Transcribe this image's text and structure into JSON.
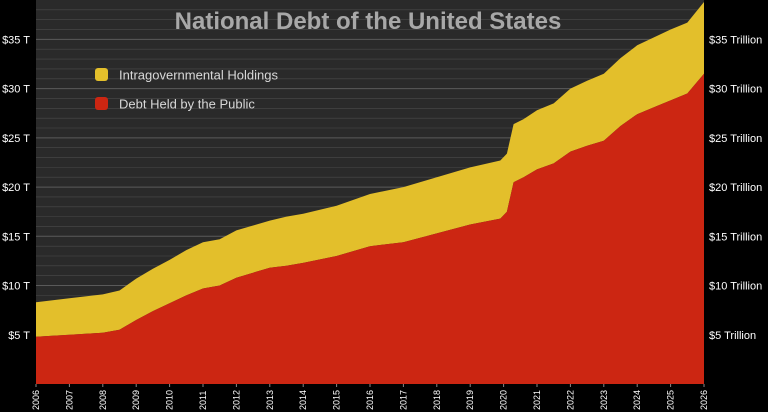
{
  "chart_data": {
    "type": "area",
    "title": "National Debt of the United States",
    "xlabel": "",
    "ylabel": "",
    "xlim": [
      2006,
      2026
    ],
    "ylim": [
      0,
      39
    ],
    "y_unit": "trillion USD",
    "stacked": true,
    "grid": true,
    "legend_position": "top-left",
    "colors": {
      "background": "#2a2a2a",
      "intragovernmental": "#e3bf2b",
      "public": "#cc2612",
      "gridline": "#4a4a4a"
    },
    "x_ticks": [
      "2006",
      "2007",
      "2008",
      "2009",
      "2010",
      "2011",
      "2012",
      "2013",
      "2014",
      "2015",
      "2016",
      "2017",
      "2018",
      "2019",
      "2020",
      "2021",
      "2022",
      "2023",
      "2024",
      "2025",
      "2026"
    ],
    "x_tick_values": [
      2006,
      2007,
      2008,
      2009,
      2010,
      2011,
      2012,
      2013,
      2014,
      2015,
      2016,
      2017,
      2018,
      2019,
      2020,
      2021,
      2022,
      2023,
      2024,
      2025,
      2026
    ],
    "y_ticks_left": [
      "$5 T",
      "$10 T",
      "$15 T",
      "$20 T",
      "$25 T",
      "$30 T",
      "$35 T"
    ],
    "y_ticks_right": [
      "$5 Trillion",
      "$10 Trillion",
      "$15 Trillion",
      "$20 Trillion",
      "$25 Trillion",
      "$30 Trillion",
      "$35 Trillion"
    ],
    "y_tick_values": [
      5,
      10,
      15,
      20,
      25,
      30,
      35
    ],
    "x": [
      2006.0,
      2007.0,
      2008.0,
      2008.5,
      2009.0,
      2009.5,
      2010.0,
      2010.5,
      2011.0,
      2011.5,
      2012.0,
      2012.5,
      2013.0,
      2013.5,
      2014.0,
      2015.0,
      2016.0,
      2017.0,
      2018.0,
      2019.0,
      2019.9,
      2020.1,
      2020.3,
      2020.6,
      2021.0,
      2021.5,
      2022.0,
      2022.5,
      2023.0,
      2023.5,
      2024.0,
      2024.5,
      2025.0,
      2025.5,
      2026.0
    ],
    "series": [
      {
        "name": "Debt Held by the Public",
        "color": "#cc2612",
        "values": [
          4.8,
          5.0,
          5.2,
          5.5,
          6.5,
          7.4,
          8.2,
          9.0,
          9.7,
          10.0,
          10.8,
          11.3,
          11.8,
          12.0,
          12.3,
          13.0,
          14.0,
          14.4,
          15.3,
          16.2,
          16.8,
          17.5,
          20.5,
          21.0,
          21.8,
          22.4,
          23.6,
          24.2,
          24.7,
          26.2,
          27.4,
          28.1,
          28.8,
          29.5,
          31.5
        ]
      },
      {
        "name": "Intragovernmental Holdings",
        "color": "#e3bf2b",
        "values": [
          3.5,
          3.7,
          3.9,
          4.0,
          4.2,
          4.3,
          4.4,
          4.6,
          4.7,
          4.7,
          4.8,
          4.8,
          4.8,
          5.0,
          5.0,
          5.1,
          5.3,
          5.6,
          5.7,
          5.8,
          5.9,
          5.9,
          5.9,
          5.9,
          6.0,
          6.1,
          6.4,
          6.6,
          6.8,
          6.9,
          7.0,
          7.1,
          7.2,
          7.2,
          7.3
        ]
      }
    ],
    "legend": [
      {
        "label": "Intragovernmental Holdings",
        "color": "#e3bf2b"
      },
      {
        "label": "Debt Held by the Public",
        "color": "#cc2612"
      }
    ]
  }
}
